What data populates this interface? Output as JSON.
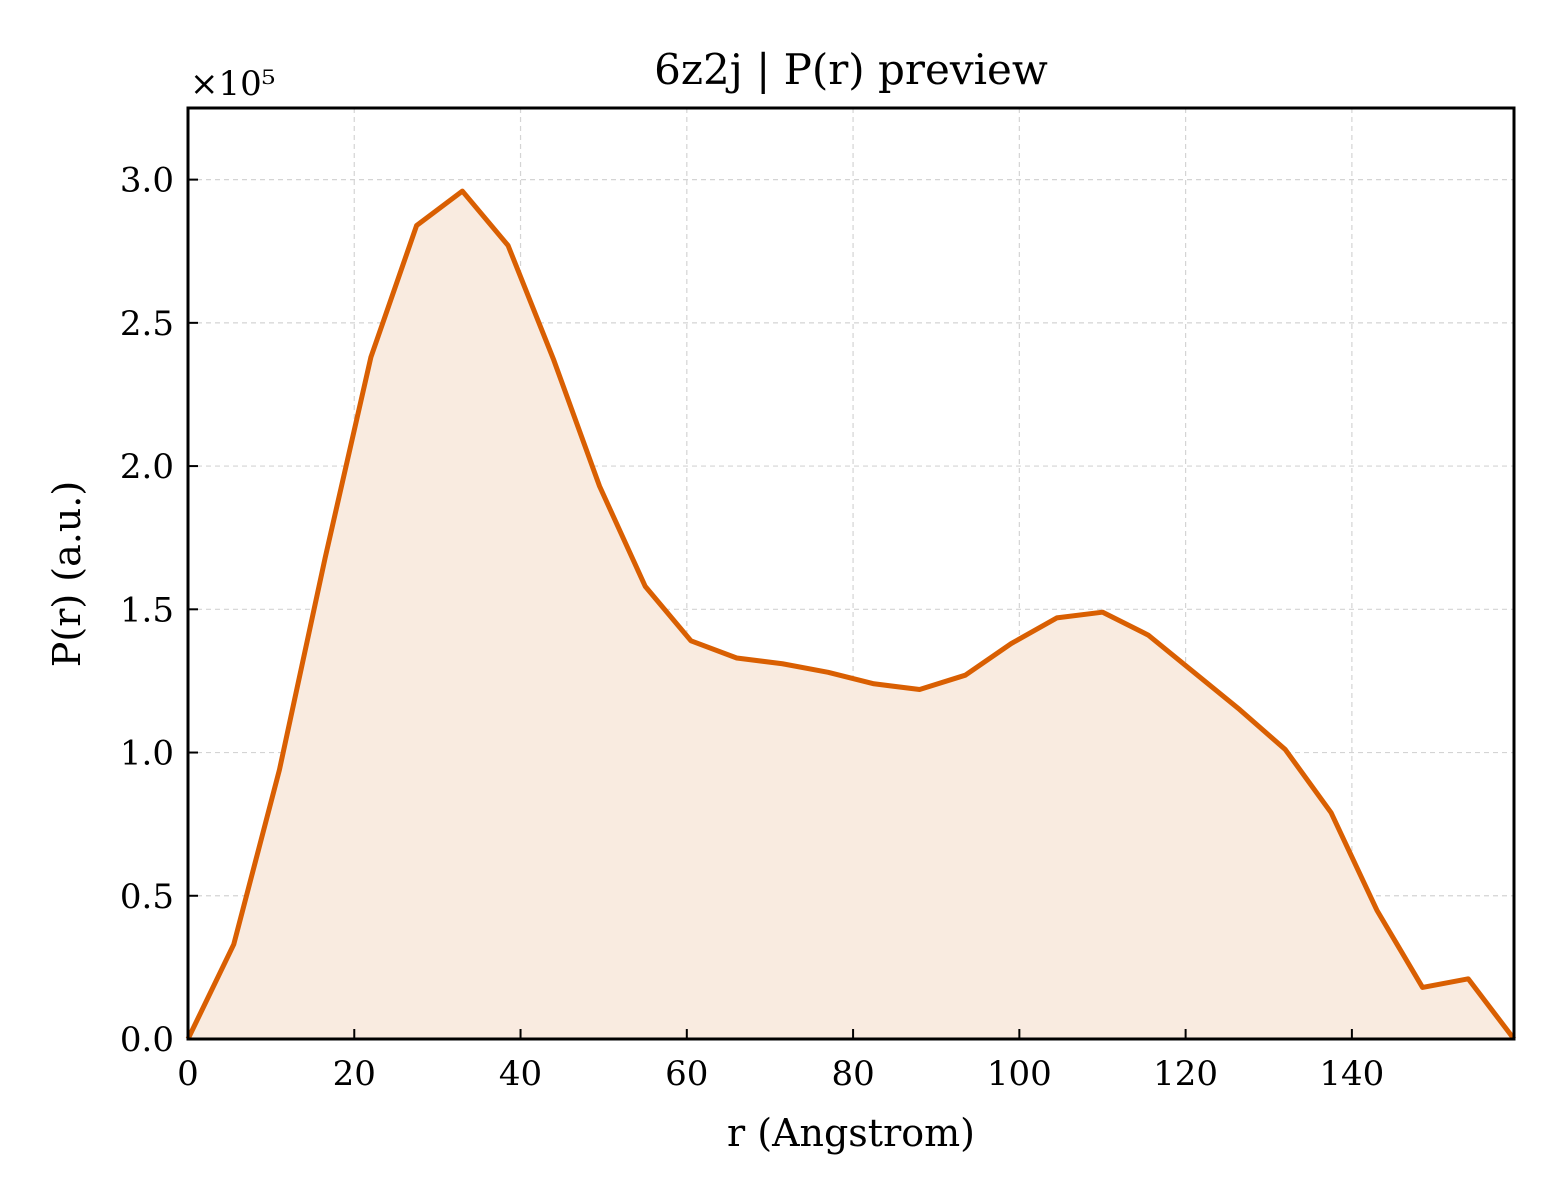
{
  "chart_data": {
    "type": "area",
    "title": "6z2j | P(r) preview",
    "xlabel": "r (Angstrom)",
    "ylabel": "P(r) (a.u.)",
    "y_multiplier_label": "×10⁵",
    "xlim": [
      0,
      159.5
    ],
    "ylim": [
      0,
      3.25
    ],
    "x_ticks": [
      0,
      20,
      40,
      60,
      80,
      100,
      120,
      140
    ],
    "x_tick_labels": [
      "0",
      "20",
      "40",
      "60",
      "80",
      "100",
      "120",
      "140"
    ],
    "y_ticks": [
      0,
      0.5,
      1.0,
      1.5,
      2.0,
      2.5,
      3.0
    ],
    "y_tick_labels": [
      "0.0",
      "0.5",
      "1.0",
      "1.5",
      "2.0",
      "2.5",
      "3.0"
    ],
    "grid": true,
    "line_color": "#d95f02",
    "fill_color": "#f9ebe0",
    "series": [
      {
        "x": [
          0,
          5.5,
          11,
          16.5,
          22,
          27.5,
          33,
          38.5,
          44,
          49.5,
          55,
          60.5,
          66,
          71.5,
          77,
          82.5,
          88,
          93.5,
          99,
          104.5,
          110,
          115.5,
          121,
          126.5,
          132,
          137.5,
          143,
          148.5,
          154,
          159.5
        ],
        "values": [
          0.0,
          0.33,
          0.94,
          1.68,
          2.38,
          2.84,
          2.96,
          2.77,
          2.37,
          1.93,
          1.58,
          1.39,
          1.33,
          1.31,
          1.28,
          1.24,
          1.22,
          1.27,
          1.38,
          1.47,
          1.49,
          1.41,
          1.28,
          1.15,
          1.01,
          0.79,
          0.45,
          0.18,
          0.21,
          0.0
        ]
      }
    ]
  }
}
